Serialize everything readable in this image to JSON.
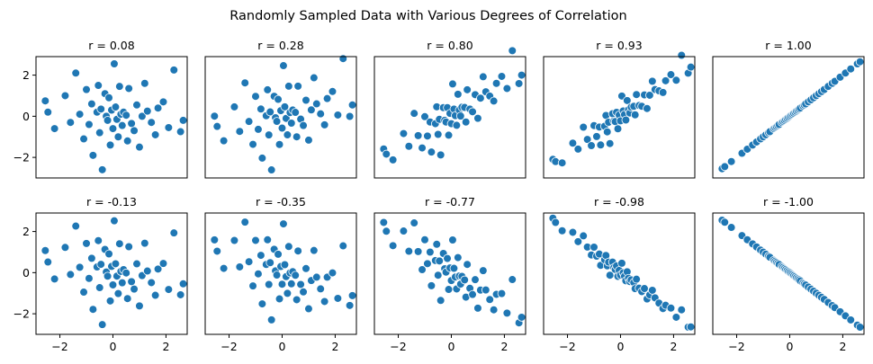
{
  "chart_data": {
    "type": "scatter",
    "title": "Randomly Sampled Data with Various Degrees of Correlation",
    "xlim": [
      -2.9,
      2.8
    ],
    "ylim": [
      -3.0,
      2.9
    ],
    "xticks": [
      -2,
      0,
      2
    ],
    "yticks": [
      -2,
      0,
      2
    ],
    "x_tick_labels": [
      "−2",
      "0",
      "2"
    ],
    "y_tick_labels": [
      "−2",
      "0",
      "2"
    ],
    "base_x": [
      -2.55,
      -2.45,
      -2.2,
      -1.8,
      -1.6,
      -1.4,
      -1.25,
      -1.1,
      -1.0,
      -0.9,
      -0.8,
      -0.75,
      -0.6,
      -0.55,
      -0.5,
      -0.45,
      -0.4,
      -0.3,
      -0.25,
      -0.2,
      -0.15,
      -0.1,
      -0.05,
      0.0,
      0.05,
      0.1,
      0.15,
      0.2,
      0.25,
      0.3,
      0.35,
      0.4,
      0.5,
      0.55,
      0.6,
      0.7,
      0.8,
      0.9,
      1.0,
      1.1,
      1.2,
      1.3,
      1.45,
      1.6,
      1.7,
      1.9,
      2.1,
      2.3,
      2.55,
      2.65
    ],
    "base_y": [
      0.75,
      0.2,
      -0.6,
      1.0,
      -0.3,
      2.1,
      0.1,
      -1.1,
      1.3,
      -0.4,
      0.6,
      -1.9,
      0.2,
      1.5,
      -0.8,
      0.35,
      -2.6,
      1.1,
      0.0,
      -0.2,
      0.9,
      -1.4,
      0.3,
      -0.6,
      2.55,
      0.45,
      -0.15,
      -1.0,
      1.45,
      0.1,
      -0.45,
      0.2,
      0.05,
      -1.2,
      1.35,
      -0.35,
      -0.7,
      0.55,
      -1.5,
      0.0,
      1.6,
      0.25,
      -0.3,
      -0.9,
      0.4,
      0.7,
      -0.55,
      2.25,
      -0.75,
      -0.2
    ],
    "panels": [
      {
        "label": "r = 0.08",
        "r": 0.08,
        "mode": "raw"
      },
      {
        "label": "r = 0.28",
        "r": 0.28,
        "mode": "mix"
      },
      {
        "label": "r = 0.80",
        "r": 0.8,
        "mode": "mix"
      },
      {
        "label": "r = 0.93",
        "r": 0.93,
        "mode": "mix"
      },
      {
        "label": "r = 1.00",
        "r": 1.0,
        "mode": "line"
      },
      {
        "label": "r = -0.13",
        "r": -0.13,
        "mode": "mix"
      },
      {
        "label": "r = -0.35",
        "r": -0.35,
        "mode": "mix"
      },
      {
        "label": "r = -0.77",
        "r": -0.77,
        "mode": "mix"
      },
      {
        "label": "r = -0.98",
        "r": -0.98,
        "mode": "mix"
      },
      {
        "label": "r = -1.00",
        "r": -1.0,
        "mode": "line"
      }
    ]
  }
}
